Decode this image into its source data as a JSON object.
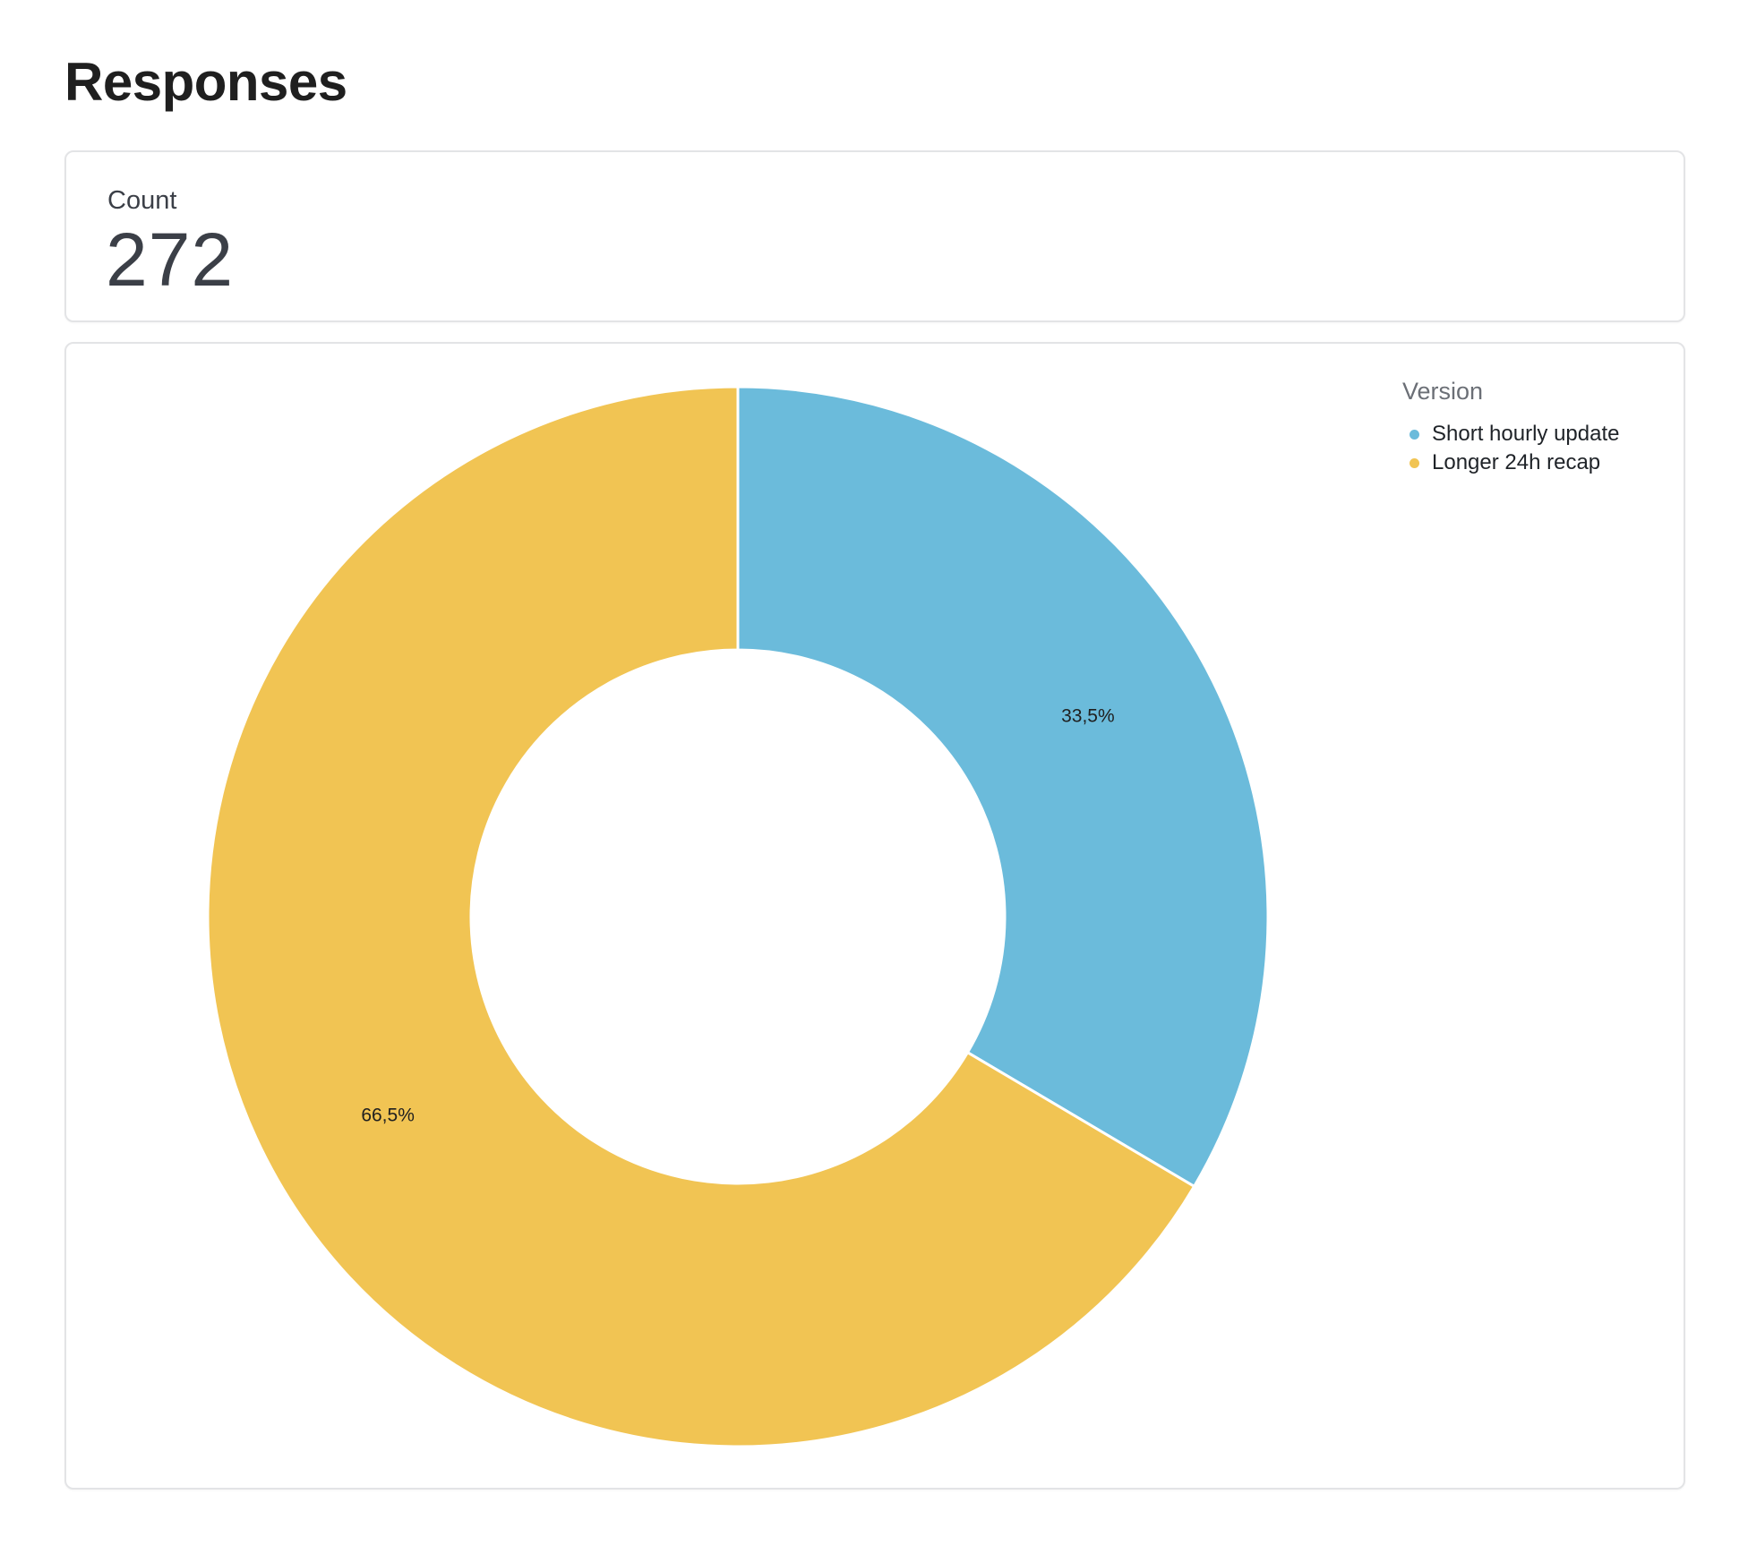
{
  "page": {
    "title": "Responses"
  },
  "count_card": {
    "label": "Count",
    "value": "272"
  },
  "chart_data": {
    "type": "pie",
    "style": "donut",
    "legend_title": "Version",
    "legend_placement": "top-right",
    "series": [
      {
        "name": "Short hourly update",
        "value": 33.5,
        "label": "33,5%",
        "color": "#6bbbdb"
      },
      {
        "name": "Longer 24h recap",
        "value": 66.5,
        "label": "66,5%",
        "color": "#f1c453"
      }
    ],
    "start_angle": "12 o'clock",
    "direction": "clockwise"
  }
}
